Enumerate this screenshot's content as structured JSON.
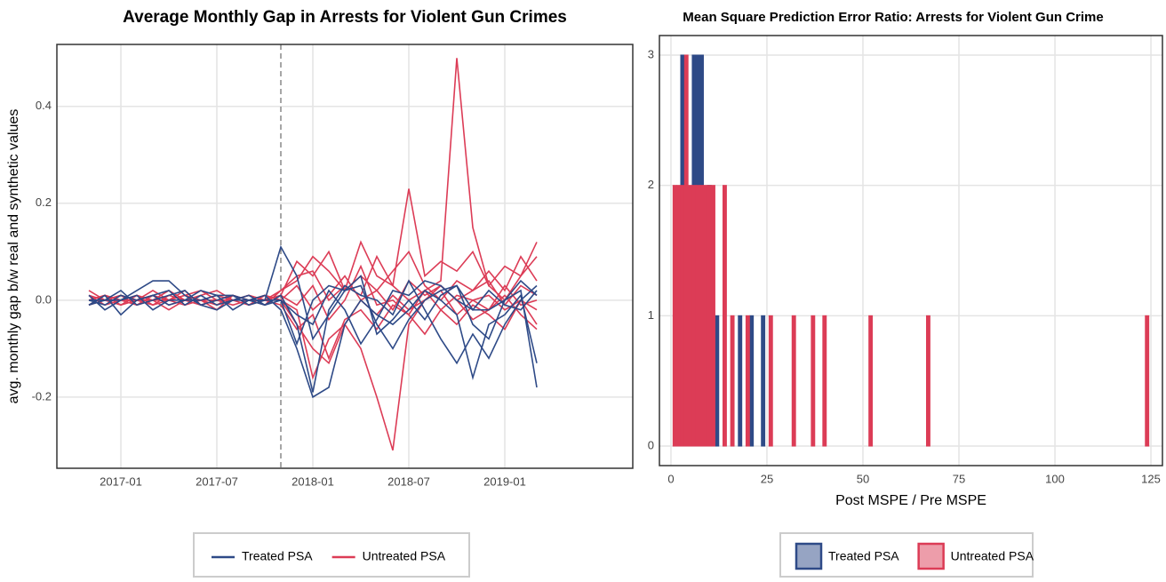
{
  "chart_data": [
    {
      "type": "line",
      "title": "Average Monthly Gap in Arrests for Violent Gun Crimes",
      "ylabel": "avg. monthly gap b/w real and synthetic values",
      "x": [
        "2016-11",
        "2016-12",
        "2017-01",
        "2017-02",
        "2017-03",
        "2017-04",
        "2017-05",
        "2017-06",
        "2017-07",
        "2017-08",
        "2017-09",
        "2017-10",
        "2017-11",
        "2017-12",
        "2018-01",
        "2018-02",
        "2018-03",
        "2018-04",
        "2018-05",
        "2018-06",
        "2018-07",
        "2018-08",
        "2018-09",
        "2018-10",
        "2018-11",
        "2018-12",
        "2019-01",
        "2019-02",
        "2019-03"
      ],
      "xlim": [
        "2016-09",
        "2019-09"
      ],
      "xticks": [
        "2017-01",
        "2017-07",
        "2018-01",
        "2018-07",
        "2019-01"
      ],
      "ylim": [
        -0.347,
        0.528
      ],
      "yticks": [
        {
          "value": -0.2,
          "label": "-0.2"
        },
        {
          "value": 0,
          "label": "0.0"
        },
        0.2,
        0.4
      ],
      "vline": "2017-11",
      "grid": true,
      "series": [
        {
          "name": "Treated PSA",
          "color": "#2e4a87",
          "lines": [
            [
              0.01,
              -0.02,
              0.0,
              0.02,
              0.04,
              0.04,
              0.01,
              -0.01,
              0.0,
              0.01,
              -0.01,
              0.0,
              0.11,
              0.05,
              -0.08,
              -0.03,
              0.02,
              0.03,
              -0.05,
              -0.1,
              -0.04,
              0.0,
              0.02,
              0.03,
              -0.05,
              -0.08,
              0.0,
              0.02,
              -0.18
            ],
            [
              -0.01,
              0.01,
              -0.03,
              0.0,
              0.01,
              -0.01,
              0.0,
              0.02,
              0.01,
              -0.02,
              0.0,
              0.01,
              -0.02,
              -0.1,
              -0.2,
              -0.18,
              -0.05,
              0.0,
              -0.03,
              -0.05,
              -0.02,
              0.02,
              0.0,
              -0.03,
              -0.16,
              -0.05,
              -0.03,
              0.01,
              -0.13
            ],
            [
              0.0,
              0.0,
              0.02,
              -0.01,
              0.0,
              0.01,
              0.02,
              -0.01,
              -0.02,
              0.0,
              0.01,
              -0.01,
              0.01,
              -0.05,
              -0.19,
              -0.02,
              0.03,
              0.01,
              0.0,
              -0.03,
              0.04,
              -0.02,
              -0.08,
              -0.13,
              -0.07,
              -0.12,
              -0.05,
              0.0,
              0.03
            ],
            [
              -0.01,
              0.0,
              0.0,
              0.01,
              -0.02,
              0.0,
              0.0,
              0.0,
              0.01,
              0.01,
              0.0,
              0.0,
              0.0,
              -0.09,
              0.0,
              0.03,
              0.02,
              0.05,
              -0.07,
              -0.04,
              0.0,
              -0.04,
              0.01,
              0.03,
              -0.02,
              0.02,
              -0.01,
              -0.02,
              0.02
            ],
            [
              0.0,
              -0.01,
              0.01,
              0.0,
              0.01,
              0.02,
              -0.01,
              0.01,
              -0.01,
              0.0,
              0.0,
              -0.01,
              0.0,
              -0.03,
              -0.05,
              0.02,
              -0.02,
              -0.09,
              -0.04,
              0.02,
              0.01,
              0.04,
              0.03,
              0.0,
              -0.02,
              -0.02,
              0.0,
              0.04,
              0.01
            ]
          ]
        },
        {
          "name": "Untreated PSA",
          "color": "#dc3c56",
          "lines": [
            [
              0.01,
              0.0,
              -0.01,
              0.01,
              0.0,
              0.02,
              0.0,
              -0.01,
              0.0,
              0.0,
              0.01,
              0.0,
              0.02,
              0.05,
              0.06,
              0.0,
              0.03,
              0.01,
              0.09,
              0.03,
              0.0,
              0.02,
              0.04,
              0.5,
              0.15,
              0.03,
              0.0,
              0.05,
              0.12
            ],
            [
              0.0,
              0.01,
              0.0,
              -0.01,
              0.01,
              0.0,
              0.01,
              0.02,
              0.0,
              -0.01,
              0.0,
              0.01,
              0.0,
              -0.05,
              -0.1,
              -0.13,
              -0.05,
              -0.1,
              -0.2,
              -0.31,
              -0.05,
              0.0,
              0.02,
              -0.03,
              0.0,
              0.01,
              -0.02,
              0.0,
              -0.05
            ],
            [
              0.02,
              0.0,
              0.0,
              0.01,
              -0.01,
              0.0,
              0.01,
              0.0,
              -0.01,
              0.01,
              0.0,
              0.0,
              0.01,
              0.08,
              0.05,
              0.1,
              0.02,
              0.12,
              0.05,
              0.03,
              0.23,
              0.05,
              0.08,
              0.06,
              0.1,
              0.03,
              0.07,
              0.05,
              0.09
            ],
            [
              -0.01,
              0.0,
              0.01,
              0.0,
              0.0,
              -0.02,
              0.0,
              0.01,
              0.02,
              0.0,
              -0.01,
              0.01,
              0.0,
              -0.02,
              -0.16,
              -0.08,
              -0.05,
              0.0,
              -0.03,
              0.01,
              -0.02,
              0.0,
              0.03,
              0.0,
              -0.04,
              -0.02,
              0.01,
              -0.03,
              -0.06
            ],
            [
              0.0,
              0.01,
              -0.01,
              0.0,
              0.02,
              0.0,
              -0.01,
              0.0,
              0.01,
              0.0,
              0.0,
              -0.01,
              0.02,
              0.04,
              0.09,
              0.06,
              0.02,
              0.05,
              0.02,
              0.06,
              0.1,
              0.03,
              0.0,
              0.04,
              0.02,
              0.06,
              0.02,
              0.09,
              0.04
            ],
            [
              0.01,
              -0.01,
              0.0,
              0.0,
              -0.01,
              0.01,
              0.0,
              0.0,
              -0.02,
              0.01,
              0.0,
              0.0,
              -0.01,
              -0.06,
              -0.03,
              -0.12,
              -0.04,
              -0.02,
              -0.06,
              -0.01,
              -0.03,
              -0.07,
              -0.02,
              -0.05,
              -0.01,
              -0.03,
              -0.06,
              0.0,
              -0.02
            ],
            [
              0.0,
              0.0,
              0.01,
              -0.01,
              0.0,
              0.0,
              0.02,
              -0.01,
              0.0,
              0.0,
              0.01,
              0.0,
              0.0,
              0.03,
              -0.02,
              0.01,
              0.05,
              0.0,
              0.02,
              -0.02,
              0.04,
              0.01,
              0.03,
              0.0,
              0.02,
              0.04,
              -0.01,
              0.03,
              0.01
            ],
            [
              -0.01,
              0.01,
              0.0,
              0.0,
              0.01,
              -0.01,
              0.0,
              0.0,
              0.0,
              0.01,
              -0.01,
              0.0,
              0.01,
              -0.01,
              0.03,
              -0.04,
              0.0,
              0.07,
              -0.01,
              0.0,
              -0.03,
              0.02,
              -0.02,
              0.01,
              0.0,
              -0.02,
              0.03,
              -0.01,
              0.0
            ]
          ]
        }
      ]
    },
    {
      "type": "histogram",
      "title": "Mean Square Prediction Error Ratio: Arrests for Violent Gun Crime",
      "xlabel": "Post MSPE / Pre MSPE",
      "xlim": [
        -3,
        128
      ],
      "xticks": [
        0,
        25,
        50,
        75,
        100,
        125
      ],
      "ylim": [
        -0.15,
        3.15
      ],
      "yticks": [
        0,
        1,
        2,
        3
      ],
      "grid": true,
      "series": [
        {
          "name": "Treated PSA",
          "color": "#2e4a87",
          "x": [
            3,
            6,
            7,
            8,
            10,
            12,
            18,
            21,
            24
          ],
          "values": [
            3,
            3,
            3,
            3,
            2,
            1,
            1,
            1,
            1
          ]
        },
        {
          "name": "Untreated PSA",
          "color": "#dc3c56",
          "x": [
            1,
            2,
            3,
            4,
            5,
            6,
            7,
            8,
            9,
            10,
            11,
            14,
            16,
            20,
            26,
            32,
            37,
            40,
            52,
            67,
            124
          ],
          "values": [
            2,
            2,
            2,
            3,
            2,
            2,
            2,
            2,
            2,
            2,
            2,
            2,
            1,
            1,
            1,
            1,
            1,
            1,
            1,
            1,
            1
          ]
        }
      ]
    }
  ]
}
